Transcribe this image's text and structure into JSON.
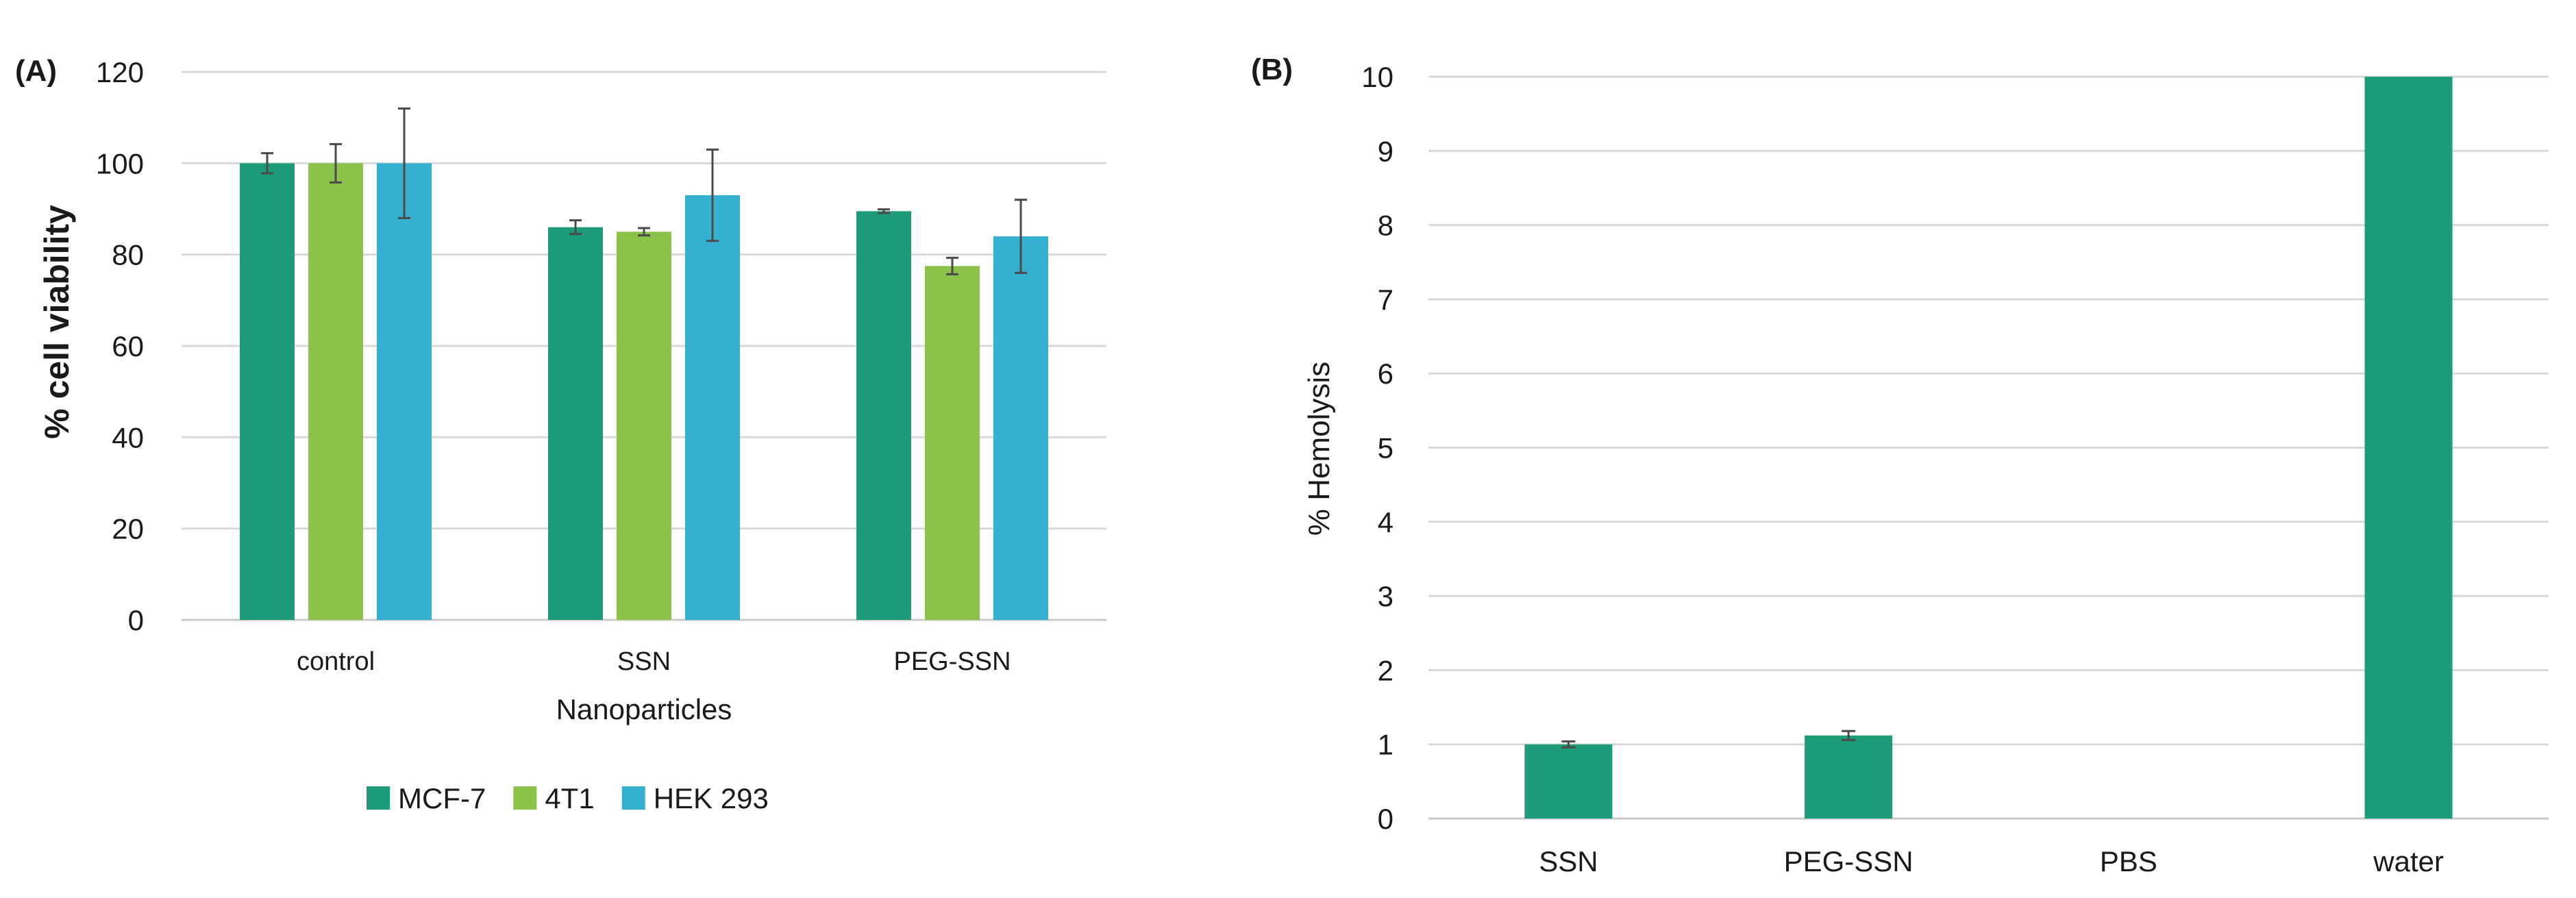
{
  "chart_data": [
    {
      "panel_label": "(A)",
      "type": "bar",
      "title": "",
      "xlabel": "Nanoparticles",
      "ylabel": "% cell viability",
      "ylim": [
        0,
        120
      ],
      "yticks": [
        "0",
        "20",
        "40",
        "60",
        "80",
        "100",
        "120"
      ],
      "grid": true,
      "legend": "bottom-center",
      "categories": [
        "control",
        "SSN",
        "PEG-SSN"
      ],
      "series": [
        {
          "name": "MCF-7",
          "color": "#1e9b78",
          "values": [
            100,
            86,
            89.5
          ],
          "errors": [
            2.2,
            1.5,
            0.4
          ]
        },
        {
          "name": "4T1",
          "color": "#8bc34a",
          "values": [
            100,
            85,
            77.5
          ],
          "errors": [
            4.2,
            0.8,
            1.8
          ]
        },
        {
          "name": "HEK 293",
          "color": "#36b0d0",
          "values": [
            100,
            93,
            84
          ],
          "errors": [
            12,
            10,
            8
          ]
        }
      ]
    },
    {
      "panel_label": "(B)",
      "type": "bar",
      "title": "",
      "xlabel": "",
      "ylabel": "% Hemolysis",
      "ylim": [
        0,
        10
      ],
      "yticks": [
        "0",
        "1",
        "2",
        "3",
        "4",
        "5",
        "6",
        "7",
        "8",
        "9",
        "10"
      ],
      "grid": true,
      "categories": [
        "SSN",
        "PEG-SSN",
        "PBS",
        "water"
      ],
      "series": [
        {
          "name": "% Hemolysis",
          "color": "#1e9b78",
          "values": [
            1.0,
            1.12,
            0,
            10
          ],
          "errors": [
            0.04,
            0.06,
            0,
            0
          ]
        }
      ]
    }
  ]
}
